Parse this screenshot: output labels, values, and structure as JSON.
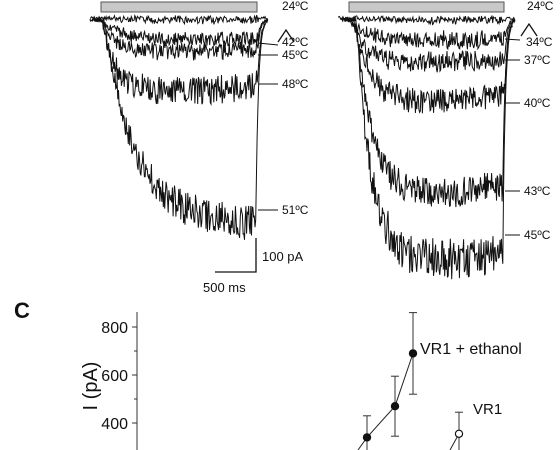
{
  "top_panels": [
    {
      "temps": [
        "24ºC",
        "42ºC",
        "45ºC",
        "48ºC",
        "51ºC"
      ]
    },
    {
      "temps": [
        "24ºC",
        "34ºC",
        "37ºC",
        "40ºC",
        "43ºC",
        "45ºC"
      ]
    }
  ],
  "scale_bar": {
    "current": "100 pA",
    "time": "500 ms"
  },
  "panel_c": {
    "label": "C"
  },
  "chart_data": {
    "type": "scatter",
    "ylabel": "I (pA)",
    "yticks": [
      "400",
      "600",
      "800"
    ],
    "ylim": [
      300,
      860
    ],
    "series": [
      {
        "name": "VR1 + ethanol",
        "marker": "filled-circle",
        "y": [
          340,
          470,
          690
        ],
        "yerr": [
          90,
          125,
          170
        ]
      },
      {
        "name": "VR1",
        "marker": "open-circle",
        "y": [
          355
        ],
        "yerr": [
          90
        ]
      }
    ]
  }
}
